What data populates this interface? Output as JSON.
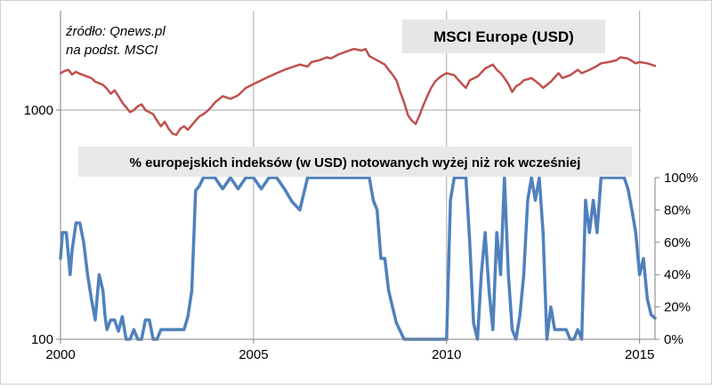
{
  "source_lines": [
    "źródło: Qnews.pl",
    "na podst. MSCI"
  ],
  "chart_data": {
    "type": "line",
    "title": "MSCI Europe (USD)",
    "subtitle": "% europejskich indeksów (w USD) notowanych wyżej niż rok wcześniej",
    "xlim": [
      2000,
      2015.4
    ],
    "x_ticks": [
      2000,
      2005,
      2010,
      2015
    ],
    "x_tick_labels": [
      "2000",
      "2005",
      "2010",
      "2015"
    ],
    "y_left": {
      "scale": "log",
      "lim": [
        100,
        2000
      ],
      "ticks": [
        100,
        1000
      ],
      "tick_labels": [
        "100",
        "1000"
      ]
    },
    "y_right": {
      "lim": [
        0,
        100
      ],
      "ticks": [
        0,
        20,
        40,
        60,
        80,
        100
      ],
      "tick_labels": [
        "0%",
        "20%",
        "40%",
        "60%",
        "80%",
        "100%"
      ]
    },
    "grid": {
      "vertical_at": [
        2005,
        2010,
        2015
      ],
      "horizontal_at_left": [
        1000
      ]
    },
    "colors": {
      "msci": "#c0504d",
      "pct": "#4f81bd"
    },
    "series": [
      {
        "axis": "left",
        "x": [
          2000.0,
          2000.1,
          2000.2,
          2000.3,
          2000.4,
          2000.5,
          2000.6,
          2000.7,
          2000.8,
          2000.9,
          2001.0,
          2001.1,
          2001.2,
          2001.3,
          2001.4,
          2001.5,
          2001.6,
          2001.7,
          2001.8,
          2001.9,
          2002.0,
          2002.1,
          2002.2,
          2002.3,
          2002.4,
          2002.5,
          2002.6,
          2002.7,
          2002.8,
          2002.9,
          2003.0,
          2003.1,
          2003.2,
          2003.3,
          2003.4,
          2003.5,
          2003.6,
          2003.7,
          2003.8,
          2003.9,
          2004.0,
          2004.2,
          2004.4,
          2004.6,
          2004.8,
          2005.0,
          2005.2,
          2005.4,
          2005.6,
          2005.8,
          2006.0,
          2006.2,
          2006.4,
          2006.5,
          2006.7,
          2006.9,
          2007.0,
          2007.2,
          2007.4,
          2007.6,
          2007.8,
          2007.9,
          2008.0,
          2008.2,
          2008.4,
          2008.5,
          2008.6,
          2008.7,
          2008.8,
          2008.9,
          2009.0,
          2009.1,
          2009.2,
          2009.3,
          2009.4,
          2009.5,
          2009.6,
          2009.7,
          2009.8,
          2009.9,
          2010.0,
          2010.2,
          2010.4,
          2010.5,
          2010.6,
          2010.8,
          2011.0,
          2011.2,
          2011.3,
          2011.4,
          2011.5,
          2011.6,
          2011.7,
          2011.8,
          2011.9,
          2012.0,
          2012.2,
          2012.4,
          2012.5,
          2012.7,
          2012.9,
          2013.0,
          2013.2,
          2013.4,
          2013.5,
          2013.7,
          2013.9,
          2014.0,
          2014.2,
          2014.4,
          2014.5,
          2014.7,
          2014.9,
          2015.0,
          2015.2,
          2015.4
        ],
        "values": [
          1450,
          1480,
          1500,
          1430,
          1470,
          1440,
          1420,
          1400,
          1380,
          1330,
          1310,
          1290,
          1240,
          1180,
          1220,
          1150,
          1080,
          1030,
          980,
          1000,
          1040,
          1060,
          1000,
          980,
          960,
          900,
          850,
          890,
          830,
          790,
          780,
          830,
          850,
          820,
          860,
          900,
          940,
          960,
          990,
          1030,
          1080,
          1150,
          1120,
          1160,
          1250,
          1300,
          1350,
          1400,
          1450,
          1500,
          1540,
          1580,
          1550,
          1620,
          1650,
          1700,
          1680,
          1750,
          1800,
          1850,
          1820,
          1850,
          1720,
          1650,
          1580,
          1500,
          1430,
          1350,
          1200,
          1080,
          950,
          900,
          870,
          950,
          1050,
          1150,
          1250,
          1330,
          1380,
          1420,
          1450,
          1420,
          1300,
          1250,
          1350,
          1400,
          1520,
          1580,
          1500,
          1450,
          1380,
          1300,
          1200,
          1270,
          1300,
          1350,
          1380,
          1300,
          1250,
          1330,
          1450,
          1380,
          1420,
          1500,
          1450,
          1500,
          1560,
          1600,
          1620,
          1650,
          1700,
          1680,
          1600,
          1620,
          1600,
          1560
        ]
      },
      {
        "axis": "right",
        "x": [
          2000.0,
          2000.05,
          2000.15,
          2000.25,
          2000.3,
          2000.4,
          2000.5,
          2000.6,
          2000.7,
          2000.8,
          2000.9,
          2001.0,
          2001.1,
          2001.15,
          2001.2,
          2001.3,
          2001.4,
          2001.5,
          2001.6,
          2001.7,
          2001.8,
          2001.9,
          2002.0,
          2002.1,
          2002.2,
          2002.3,
          2002.4,
          2002.5,
          2002.6,
          2002.7,
          2002.8,
          2002.9,
          2003.0,
          2003.1,
          2003.2,
          2003.3,
          2003.4,
          2003.5,
          2003.6,
          2003.7,
          2003.8,
          2004.0,
          2004.2,
          2004.4,
          2004.6,
          2004.8,
          2005.0,
          2005.2,
          2005.4,
          2005.6,
          2005.8,
          2006.0,
          2006.2,
          2006.4,
          2006.6,
          2007.0,
          2007.4,
          2007.8,
          2008.0,
          2008.1,
          2008.2,
          2008.3,
          2008.4,
          2008.5,
          2008.6,
          2008.7,
          2008.9,
          2009.2,
          2009.5,
          2009.8,
          2010.0,
          2010.1,
          2010.2,
          2010.3,
          2010.4,
          2010.5,
          2010.6,
          2010.7,
          2010.8,
          2010.9,
          2011.0,
          2011.1,
          2011.2,
          2011.3,
          2011.4,
          2011.5,
          2011.6,
          2011.7,
          2011.8,
          2011.9,
          2012.0,
          2012.1,
          2012.2,
          2012.3,
          2012.4,
          2012.5,
          2012.6,
          2012.7,
          2012.8,
          2012.9,
          2013.0,
          2013.1,
          2013.2,
          2013.3,
          2013.4,
          2013.5,
          2013.6,
          2013.7,
          2013.8,
          2013.9,
          2014.0,
          2014.2,
          2014.4,
          2014.5,
          2014.6,
          2014.7,
          2014.8,
          2014.9,
          2015.0,
          2015.1,
          2015.2,
          2015.3,
          2015.4
        ],
        "values": [
          50,
          66,
          66,
          40,
          55,
          72,
          72,
          60,
          40,
          25,
          12,
          40,
          30,
          15,
          6,
          12,
          12,
          5,
          14,
          0,
          0,
          6,
          0,
          0,
          12,
          12,
          0,
          0,
          6,
          6,
          6,
          6,
          6,
          6,
          6,
          14,
          30,
          92,
          95,
          100,
          100,
          100,
          93,
          100,
          93,
          100,
          100,
          93,
          100,
          100,
          93,
          85,
          80,
          100,
          100,
          100,
          100,
          100,
          100,
          86,
          80,
          50,
          50,
          30,
          20,
          10,
          0,
          0,
          0,
          0,
          0,
          86,
          100,
          100,
          100,
          100,
          60,
          10,
          0,
          40,
          66,
          30,
          6,
          66,
          40,
          100,
          40,
          6,
          0,
          15,
          40,
          86,
          100,
          86,
          100,
          66,
          0,
          20,
          6,
          6,
          6,
          6,
          0,
          0,
          6,
          0,
          86,
          66,
          86,
          66,
          100,
          100,
          100,
          100,
          100,
          93,
          80,
          66,
          40,
          50,
          25,
          15,
          13
        ]
      }
    ]
  }
}
